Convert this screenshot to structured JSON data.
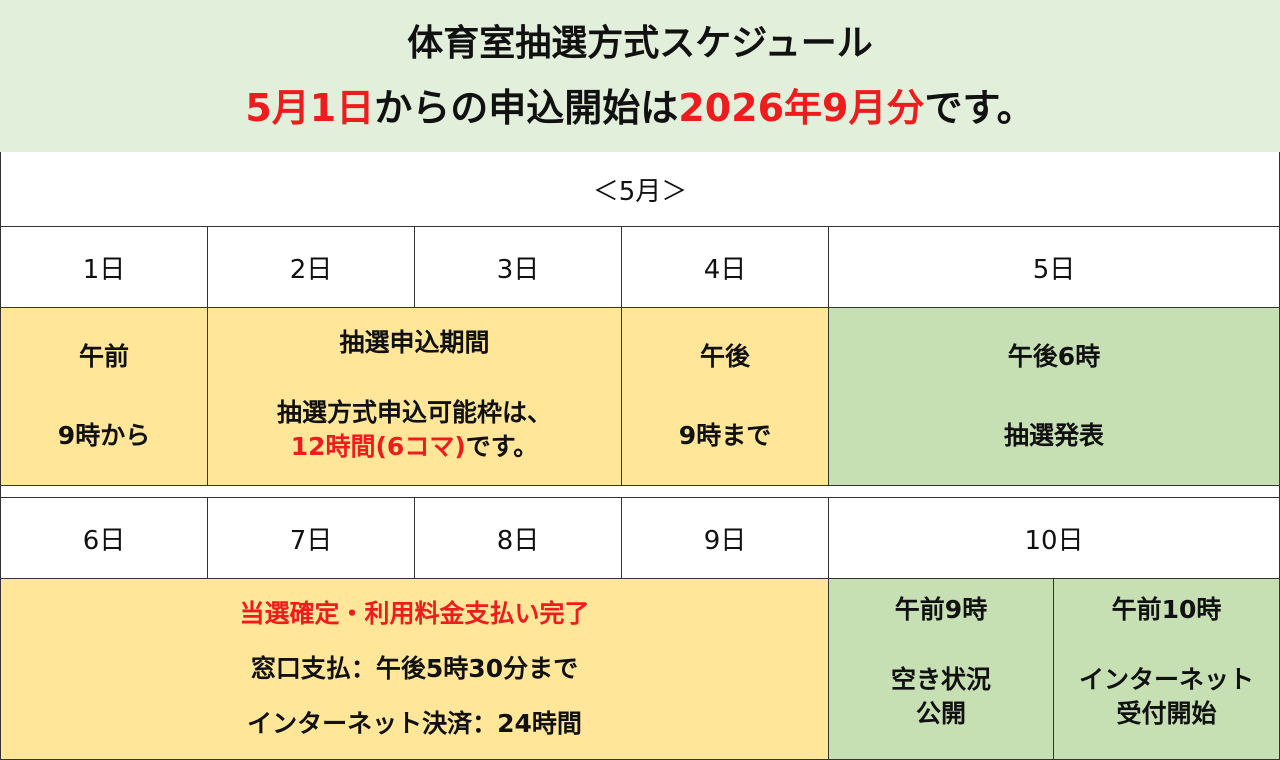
{
  "title": {
    "line1": "体育室抽選方式スケジュール",
    "line2_red1": "5月1日",
    "line2_mid": "からの申込開始は",
    "line2_red2": "2026年9月分",
    "line2_end": "です。"
  },
  "month": "＜5月＞",
  "week1": {
    "days": [
      "1日",
      "2日",
      "3日",
      "4日",
      "5日"
    ],
    "day1": {
      "line1": "午前",
      "line2": "9時から"
    },
    "period": {
      "line1": "抽選申込期間",
      "line2": "抽選方式申込可能枠は、",
      "line3_red": "12時間(6コマ)",
      "line3_end": "です。"
    },
    "day4": {
      "line1": "午後",
      "line2": "9時まで"
    },
    "day5": {
      "line1": "午後6時",
      "line2": "抽選発表"
    }
  },
  "week2": {
    "days": [
      "6日",
      "7日",
      "8日",
      "9日",
      "10日"
    ],
    "payment": {
      "line1_red": "当選確定・利用料金支払い完了",
      "line2": "窓口支払：午後5時30分まで",
      "line3": "インターネット決済：24時間"
    },
    "day10a": {
      "line1": "午前9時",
      "line2": "空き状況",
      "line3": "公開"
    },
    "day10b": {
      "line1": "午前10時",
      "line2": "インターネット",
      "line3": "受付開始"
    }
  },
  "colors": {
    "header_bg": "#e2efda",
    "yellow": "#ffe699",
    "green": "#c6e0b4",
    "accent_red": "#ee1c1c"
  }
}
